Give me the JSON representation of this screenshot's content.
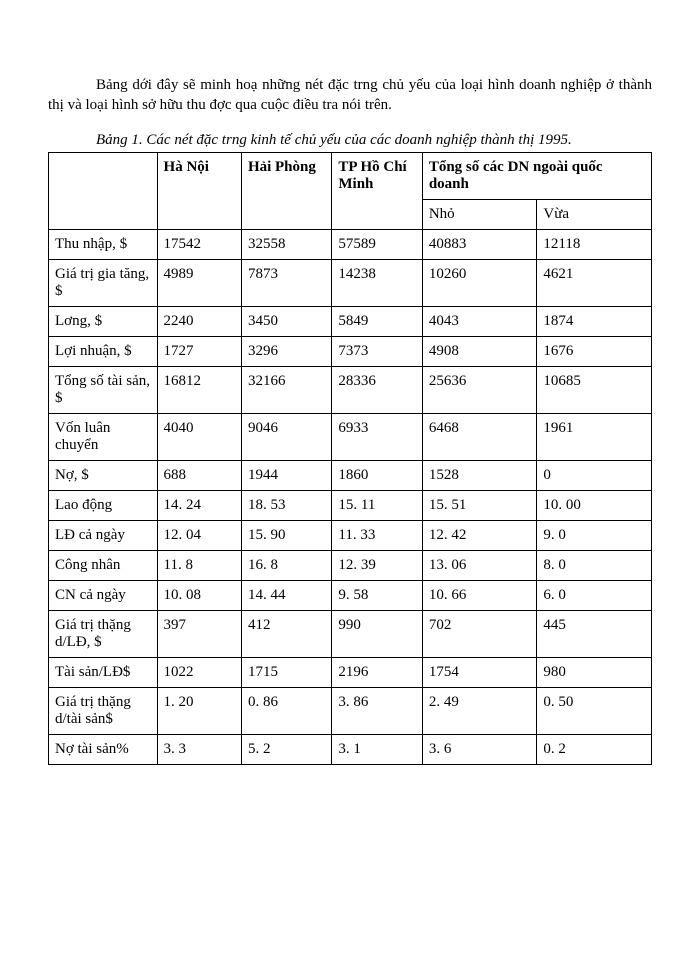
{
  "intro": "Bảng dới đây sẽ minh hoạ những nét đặc trng chủ yếu của loại hình doanh nghiệp ở thành thị và loại hình sở hữu thu đợc qua cuộc điều tra nói trên.",
  "caption": "Bảng 1. Các nét đặc trng kinh tế chủ yếu của các doanh nghiệp thành thị 1995.",
  "headers": {
    "c1": "Hà Nội",
    "c2": "Hải Phòng",
    "c3": "TP Hồ Chí Minh",
    "c4": "Tổng số các DN ngoài quốc doanh",
    "sub_nho": "Nhỏ",
    "sub_vua": "Vừa"
  },
  "rows": [
    {
      "label": "Thu nhập, $",
      "c1": "17542",
      "c2": "32558",
      "c3": "57589",
      "c4": "40883",
      "c5": "12118"
    },
    {
      "label": "Giá trị gia tăng, $",
      "c1": "4989",
      "c2": "7873",
      "c3": "14238",
      "c4": "10260",
      "c5": "4621"
    },
    {
      "label": "Lơng, $",
      "c1": "2240",
      "c2": "3450",
      "c3": "5849",
      "c4": "4043",
      "c5": "1874"
    },
    {
      "label": "Lợi nhuận, $",
      "c1": "1727",
      "c2": "3296",
      "c3": "7373",
      "c4": "4908",
      "c5": "1676"
    },
    {
      "label": "Tổng số tài sản, $",
      "c1": "16812",
      "c2": "32166",
      "c3": "28336",
      "c4": "25636",
      "c5": "10685"
    },
    {
      "label": "Vốn luân chuyển",
      "c1": "4040",
      "c2": "9046",
      "c3": "6933",
      "c4": "6468",
      "c5": "1961"
    },
    {
      "label": "Nợ, $",
      "c1": "688",
      "c2": "1944",
      "c3": "1860",
      "c4": "1528",
      "c5": "0"
    },
    {
      "label": "Lao động",
      "c1": "14. 24",
      "c2": "18. 53",
      "c3": "15. 11",
      "c4": "15. 51",
      "c5": "10. 00"
    },
    {
      "label": "LĐ cả ngày",
      "c1": "12. 04",
      "c2": "15. 90",
      "c3": "11. 33",
      "c4": "12. 42",
      "c5": "9. 0"
    },
    {
      "label": "Công nhân",
      "c1": "11. 8",
      "c2": "16. 8",
      "c3": "12. 39",
      "c4": "13. 06",
      "c5": "8. 0"
    },
    {
      "label": "CN cả ngày",
      "c1": "10. 08",
      "c2": "14. 44",
      "c3": "9. 58",
      "c4": "10. 66",
      "c5": "6. 0"
    },
    {
      "label": "Giá trị thặng d/LĐ, $",
      "c1": "397",
      "c2": "412",
      "c3": "990",
      "c4": "702",
      "c5": "445"
    },
    {
      "label": "Tài sản/LĐ$",
      "c1": "1022",
      "c2": "1715",
      "c3": "2196",
      "c4": "1754",
      "c5": "980"
    },
    {
      "label": "Giá trị thặng d/tài sản$",
      "c1": "1. 20",
      "c2": "0. 86",
      "c3": "3. 86",
      "c4": "2. 49",
      "c5": "0. 50"
    },
    {
      "label": "Nợ tài sản%",
      "c1": "3. 3",
      "c2": "5. 2",
      "c3": "3. 1",
      "c4": "3. 6",
      "c5": "0. 2"
    }
  ]
}
